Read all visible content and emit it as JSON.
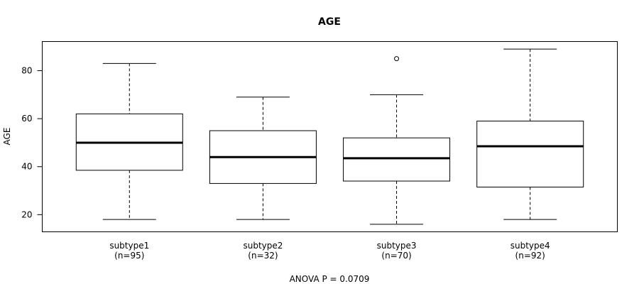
{
  "chart_data": {
    "type": "boxplot",
    "title": "AGE",
    "ylabel": "AGE",
    "xlabel": "",
    "ylim": [
      13,
      92
    ],
    "yticks": [
      20,
      40,
      60,
      80
    ],
    "grid": false,
    "legend": "none",
    "footer_text": "ANOVA P = 0.0709",
    "categories": [
      {
        "name": "subtype1",
        "n_label": "(n=95)",
        "whisker_low": 18,
        "q1": 38.5,
        "median": 50,
        "q3": 62,
        "whisker_high": 83,
        "outliers": []
      },
      {
        "name": "subtype2",
        "n_label": "(n=32)",
        "whisker_low": 18,
        "q1": 33,
        "median": 44,
        "q3": 55,
        "whisker_high": 69,
        "outliers": []
      },
      {
        "name": "subtype3",
        "n_label": "(n=70)",
        "whisker_low": 16,
        "q1": 34,
        "median": 43.5,
        "q3": 52,
        "whisker_high": 70,
        "outliers": [
          85
        ]
      },
      {
        "name": "subtype4",
        "n_label": "(n=92)",
        "whisker_low": 18,
        "q1": 31.5,
        "median": 48.5,
        "q3": 59,
        "whisker_high": 89,
        "outliers": []
      }
    ]
  }
}
